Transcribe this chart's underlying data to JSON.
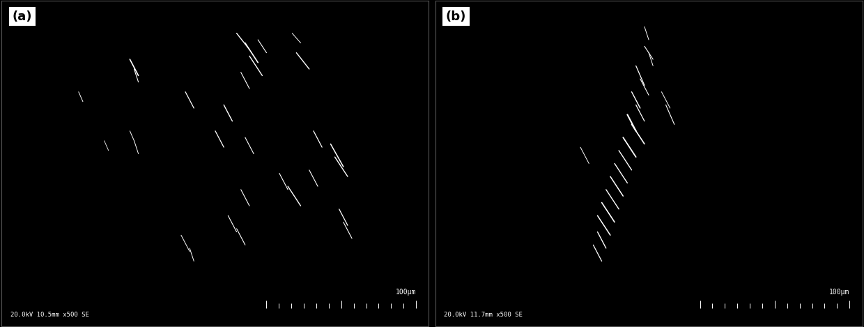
{
  "panel_a_label": "(a)",
  "panel_b_label": "(b)",
  "panel_a_info": "20.0kV 10.5mm x500 SE",
  "panel_b_info": "20.0kV 11.7mm x500 SE",
  "scalebar_label": "100μm",
  "bg_color": "#000000",
  "label_box_color": "#ffffff",
  "label_text_color": "#000000",
  "info_text_color": "#ffffff",
  "scale_text_color": "#ffffff",
  "fig_width": 12.4,
  "fig_height": 4.69,
  "dpi": 100,
  "panel_a_fibers": [
    {
      "x": [
        0.3,
        0.32
      ],
      "y": [
        0.82,
        0.77
      ],
      "lw": 1.2
    },
    {
      "x": [
        0.31,
        0.32
      ],
      "y": [
        0.79,
        0.75
      ],
      "lw": 0.8
    },
    {
      "x": [
        0.18,
        0.19
      ],
      "y": [
        0.72,
        0.69
      ],
      "lw": 0.7
    },
    {
      "x": [
        0.55,
        0.58
      ],
      "y": [
        0.9,
        0.85
      ],
      "lw": 1.0
    },
    {
      "x": [
        0.57,
        0.6
      ],
      "y": [
        0.87,
        0.81
      ],
      "lw": 1.2
    },
    {
      "x": [
        0.58,
        0.61
      ],
      "y": [
        0.83,
        0.77
      ],
      "lw": 1.0
    },
    {
      "x": [
        0.6,
        0.62
      ],
      "y": [
        0.88,
        0.84
      ],
      "lw": 0.8
    },
    {
      "x": [
        0.68,
        0.7
      ],
      "y": [
        0.9,
        0.87
      ],
      "lw": 0.7
    },
    {
      "x": [
        0.69,
        0.72
      ],
      "y": [
        0.84,
        0.79
      ],
      "lw": 1.0
    },
    {
      "x": [
        0.56,
        0.58
      ],
      "y": [
        0.78,
        0.73
      ],
      "lw": 0.8
    },
    {
      "x": [
        0.43,
        0.45
      ],
      "y": [
        0.72,
        0.67
      ],
      "lw": 0.9
    },
    {
      "x": [
        0.52,
        0.54
      ],
      "y": [
        0.68,
        0.63
      ],
      "lw": 1.0
    },
    {
      "x": [
        0.3,
        0.31
      ],
      "y": [
        0.6,
        0.57
      ],
      "lw": 0.7
    },
    {
      "x": [
        0.31,
        0.32
      ],
      "y": [
        0.57,
        0.53
      ],
      "lw": 0.7
    },
    {
      "x": [
        0.24,
        0.25
      ],
      "y": [
        0.57,
        0.54
      ],
      "lw": 0.6
    },
    {
      "x": [
        0.5,
        0.52
      ],
      "y": [
        0.6,
        0.55
      ],
      "lw": 0.9
    },
    {
      "x": [
        0.57,
        0.59
      ],
      "y": [
        0.58,
        0.53
      ],
      "lw": 0.8
    },
    {
      "x": [
        0.73,
        0.75
      ],
      "y": [
        0.6,
        0.55
      ],
      "lw": 0.9
    },
    {
      "x": [
        0.77,
        0.8
      ],
      "y": [
        0.56,
        0.49
      ],
      "lw": 1.1
    },
    {
      "x": [
        0.78,
        0.81
      ],
      "y": [
        0.52,
        0.46
      ],
      "lw": 1.0
    },
    {
      "x": [
        0.72,
        0.74
      ],
      "y": [
        0.48,
        0.43
      ],
      "lw": 0.8
    },
    {
      "x": [
        0.65,
        0.67
      ],
      "y": [
        0.47,
        0.42
      ],
      "lw": 0.8
    },
    {
      "x": [
        0.67,
        0.7
      ],
      "y": [
        0.43,
        0.37
      ],
      "lw": 1.0
    },
    {
      "x": [
        0.56,
        0.58
      ],
      "y": [
        0.42,
        0.37
      ],
      "lw": 0.8
    },
    {
      "x": [
        0.53,
        0.55
      ],
      "y": [
        0.34,
        0.29
      ],
      "lw": 0.8
    },
    {
      "x": [
        0.55,
        0.57
      ],
      "y": [
        0.3,
        0.25
      ],
      "lw": 0.8
    },
    {
      "x": [
        0.42,
        0.44
      ],
      "y": [
        0.28,
        0.23
      ],
      "lw": 0.7
    },
    {
      "x": [
        0.44,
        0.45
      ],
      "y": [
        0.24,
        0.2
      ],
      "lw": 0.7
    },
    {
      "x": [
        0.79,
        0.81
      ],
      "y": [
        0.36,
        0.31
      ],
      "lw": 0.9
    },
    {
      "x": [
        0.8,
        0.82
      ],
      "y": [
        0.32,
        0.27
      ],
      "lw": 0.8
    }
  ],
  "panel_b_fibers": [
    {
      "x": [
        0.49,
        0.5
      ],
      "y": [
        0.92,
        0.88
      ],
      "lw": 0.7
    },
    {
      "x": [
        0.49,
        0.51
      ],
      "y": [
        0.86,
        0.82
      ],
      "lw": 0.8
    },
    {
      "x": [
        0.5,
        0.51
      ],
      "y": [
        0.84,
        0.8
      ],
      "lw": 0.7
    },
    {
      "x": [
        0.47,
        0.49
      ],
      "y": [
        0.8,
        0.74
      ],
      "lw": 0.9
    },
    {
      "x": [
        0.48,
        0.5
      ],
      "y": [
        0.76,
        0.71
      ],
      "lw": 0.8
    },
    {
      "x": [
        0.46,
        0.48
      ],
      "y": [
        0.72,
        0.67
      ],
      "lw": 1.0
    },
    {
      "x": [
        0.47,
        0.49
      ],
      "y": [
        0.68,
        0.63
      ],
      "lw": 0.9
    },
    {
      "x": [
        0.45,
        0.47
      ],
      "y": [
        0.65,
        0.6
      ],
      "lw": 1.5
    },
    {
      "x": [
        0.46,
        0.49
      ],
      "y": [
        0.62,
        0.56
      ],
      "lw": 1.2
    },
    {
      "x": [
        0.44,
        0.47
      ],
      "y": [
        0.58,
        0.52
      ],
      "lw": 1.3
    },
    {
      "x": [
        0.43,
        0.46
      ],
      "y": [
        0.54,
        0.48
      ],
      "lw": 1.0
    },
    {
      "x": [
        0.42,
        0.45
      ],
      "y": [
        0.5,
        0.44
      ],
      "lw": 1.0
    },
    {
      "x": [
        0.41,
        0.44
      ],
      "y": [
        0.46,
        0.4
      ],
      "lw": 1.1
    },
    {
      "x": [
        0.4,
        0.43
      ],
      "y": [
        0.42,
        0.36
      ],
      "lw": 1.0
    },
    {
      "x": [
        0.39,
        0.42
      ],
      "y": [
        0.38,
        0.32
      ],
      "lw": 1.2
    },
    {
      "x": [
        0.38,
        0.41
      ],
      "y": [
        0.34,
        0.28
      ],
      "lw": 1.1
    },
    {
      "x": [
        0.38,
        0.4
      ],
      "y": [
        0.29,
        0.24
      ],
      "lw": 1.0
    },
    {
      "x": [
        0.37,
        0.39
      ],
      "y": [
        0.25,
        0.2
      ],
      "lw": 0.9
    },
    {
      "x": [
        0.34,
        0.36
      ],
      "y": [
        0.55,
        0.5
      ],
      "lw": 0.7
    },
    {
      "x": [
        0.53,
        0.55
      ],
      "y": [
        0.72,
        0.67
      ],
      "lw": 0.7
    },
    {
      "x": [
        0.54,
        0.56
      ],
      "y": [
        0.68,
        0.62
      ],
      "lw": 0.8
    }
  ]
}
